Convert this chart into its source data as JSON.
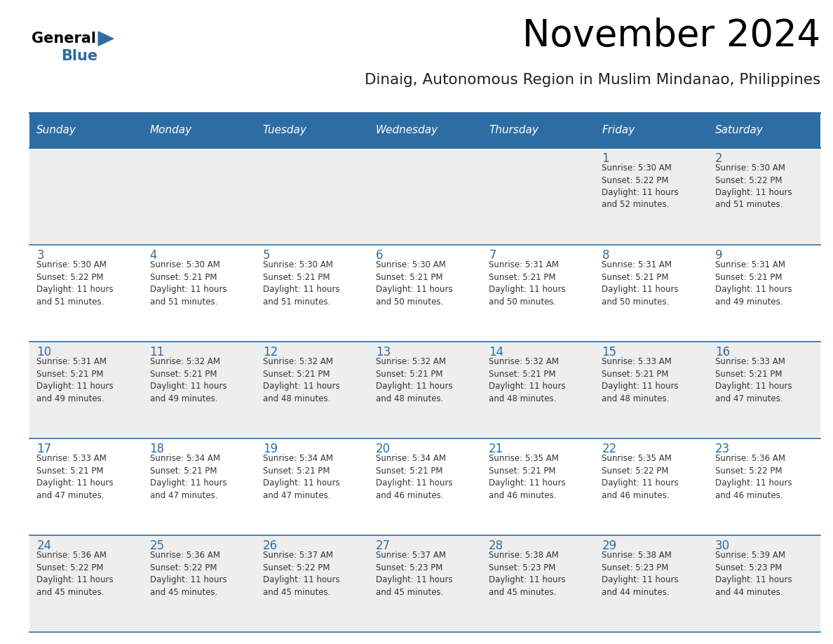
{
  "title": "November 2024",
  "subtitle": "Dinaig, Autonomous Region in Muslim Mindanao, Philippines",
  "days_of_week": [
    "Sunday",
    "Monday",
    "Tuesday",
    "Wednesday",
    "Thursday",
    "Friday",
    "Saturday"
  ],
  "header_bg": "#2E6DA4",
  "header_text": "#FFFFFF",
  "row1_bg": "#EEEEEE",
  "row2_bg": "#FFFFFF",
  "separator_color": "#2E6DA4",
  "day_number_color": "#2E6DA4",
  "cell_text_color": "#333333",
  "calendar_data": [
    [
      null,
      null,
      null,
      null,
      null,
      {
        "day": "1",
        "sunrise": "5:30 AM",
        "sunset": "5:22 PM",
        "daylight_h": "11 hours",
        "daylight_m": "and 52 minutes."
      },
      {
        "day": "2",
        "sunrise": "5:30 AM",
        "sunset": "5:22 PM",
        "daylight_h": "11 hours",
        "daylight_m": "and 51 minutes."
      }
    ],
    [
      {
        "day": "3",
        "sunrise": "5:30 AM",
        "sunset": "5:22 PM",
        "daylight_h": "11 hours",
        "daylight_m": "and 51 minutes."
      },
      {
        "day": "4",
        "sunrise": "5:30 AM",
        "sunset": "5:21 PM",
        "daylight_h": "11 hours",
        "daylight_m": "and 51 minutes."
      },
      {
        "day": "5",
        "sunrise": "5:30 AM",
        "sunset": "5:21 PM",
        "daylight_h": "11 hours",
        "daylight_m": "and 51 minutes."
      },
      {
        "day": "6",
        "sunrise": "5:30 AM",
        "sunset": "5:21 PM",
        "daylight_h": "11 hours",
        "daylight_m": "and 50 minutes."
      },
      {
        "day": "7",
        "sunrise": "5:31 AM",
        "sunset": "5:21 PM",
        "daylight_h": "11 hours",
        "daylight_m": "and 50 minutes."
      },
      {
        "day": "8",
        "sunrise": "5:31 AM",
        "sunset": "5:21 PM",
        "daylight_h": "11 hours",
        "daylight_m": "and 50 minutes."
      },
      {
        "day": "9",
        "sunrise": "5:31 AM",
        "sunset": "5:21 PM",
        "daylight_h": "11 hours",
        "daylight_m": "and 49 minutes."
      }
    ],
    [
      {
        "day": "10",
        "sunrise": "5:31 AM",
        "sunset": "5:21 PM",
        "daylight_h": "11 hours",
        "daylight_m": "and 49 minutes."
      },
      {
        "day": "11",
        "sunrise": "5:32 AM",
        "sunset": "5:21 PM",
        "daylight_h": "11 hours",
        "daylight_m": "and 49 minutes."
      },
      {
        "day": "12",
        "sunrise": "5:32 AM",
        "sunset": "5:21 PM",
        "daylight_h": "11 hours",
        "daylight_m": "and 48 minutes."
      },
      {
        "day": "13",
        "sunrise": "5:32 AM",
        "sunset": "5:21 PM",
        "daylight_h": "11 hours",
        "daylight_m": "and 48 minutes."
      },
      {
        "day": "14",
        "sunrise": "5:32 AM",
        "sunset": "5:21 PM",
        "daylight_h": "11 hours",
        "daylight_m": "and 48 minutes."
      },
      {
        "day": "15",
        "sunrise": "5:33 AM",
        "sunset": "5:21 PM",
        "daylight_h": "11 hours",
        "daylight_m": "and 48 minutes."
      },
      {
        "day": "16",
        "sunrise": "5:33 AM",
        "sunset": "5:21 PM",
        "daylight_h": "11 hours",
        "daylight_m": "and 47 minutes."
      }
    ],
    [
      {
        "day": "17",
        "sunrise": "5:33 AM",
        "sunset": "5:21 PM",
        "daylight_h": "11 hours",
        "daylight_m": "and 47 minutes."
      },
      {
        "day": "18",
        "sunrise": "5:34 AM",
        "sunset": "5:21 PM",
        "daylight_h": "11 hours",
        "daylight_m": "and 47 minutes."
      },
      {
        "day": "19",
        "sunrise": "5:34 AM",
        "sunset": "5:21 PM",
        "daylight_h": "11 hours",
        "daylight_m": "and 47 minutes."
      },
      {
        "day": "20",
        "sunrise": "5:34 AM",
        "sunset": "5:21 PM",
        "daylight_h": "11 hours",
        "daylight_m": "and 46 minutes."
      },
      {
        "day": "21",
        "sunrise": "5:35 AM",
        "sunset": "5:21 PM",
        "daylight_h": "11 hours",
        "daylight_m": "and 46 minutes."
      },
      {
        "day": "22",
        "sunrise": "5:35 AM",
        "sunset": "5:22 PM",
        "daylight_h": "11 hours",
        "daylight_m": "and 46 minutes."
      },
      {
        "day": "23",
        "sunrise": "5:36 AM",
        "sunset": "5:22 PM",
        "daylight_h": "11 hours",
        "daylight_m": "and 46 minutes."
      }
    ],
    [
      {
        "day": "24",
        "sunrise": "5:36 AM",
        "sunset": "5:22 PM",
        "daylight_h": "11 hours",
        "daylight_m": "and 45 minutes."
      },
      {
        "day": "25",
        "sunrise": "5:36 AM",
        "sunset": "5:22 PM",
        "daylight_h": "11 hours",
        "daylight_m": "and 45 minutes."
      },
      {
        "day": "26",
        "sunrise": "5:37 AM",
        "sunset": "5:22 PM",
        "daylight_h": "11 hours",
        "daylight_m": "and 45 minutes."
      },
      {
        "day": "27",
        "sunrise": "5:37 AM",
        "sunset": "5:23 PM",
        "daylight_h": "11 hours",
        "daylight_m": "and 45 minutes."
      },
      {
        "day": "28",
        "sunrise": "5:38 AM",
        "sunset": "5:23 PM",
        "daylight_h": "11 hours",
        "daylight_m": "and 45 minutes."
      },
      {
        "day": "29",
        "sunrise": "5:38 AM",
        "sunset": "5:23 PM",
        "daylight_h": "11 hours",
        "daylight_m": "and 44 minutes."
      },
      {
        "day": "30",
        "sunrise": "5:39 AM",
        "sunset": "5:23 PM",
        "daylight_h": "11 hours",
        "daylight_m": "and 44 minutes."
      }
    ]
  ]
}
